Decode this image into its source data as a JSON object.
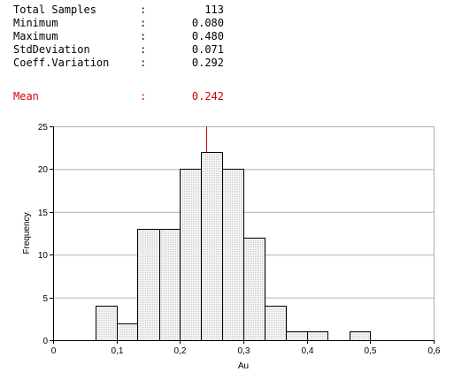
{
  "stats": [
    {
      "label": "Total Samples",
      "value": "113"
    },
    {
      "label": "Minimum",
      "value": "0.080"
    },
    {
      "label": "Maximum",
      "value": "0.480"
    },
    {
      "label": "StdDeviation",
      "value": "0.071"
    },
    {
      "label": "Coeff.Variation",
      "value": "0.292"
    }
  ],
  "mean": {
    "label": "Mean",
    "value": "0.242"
  },
  "separator": ":",
  "colors": {
    "mean": "#d40000",
    "bar_fill": "#e6e6e6",
    "bar_stroke": "#000000",
    "grid": "#b0b0b0"
  },
  "chart_data": {
    "type": "bar",
    "histogram": true,
    "bin_edges": [
      0.067,
      0.1,
      0.133,
      0.167,
      0.2,
      0.233,
      0.267,
      0.3,
      0.333,
      0.367,
      0.4,
      0.433,
      0.467,
      0.5
    ],
    "values": [
      4,
      2,
      13,
      13,
      20,
      22,
      20,
      12,
      4,
      1,
      1,
      0,
      1
    ],
    "mean_marker": 0.242,
    "xlabel": "Au",
    "ylabel": "Frequency",
    "xlim": [
      0,
      0.6
    ],
    "ylim": [
      0,
      25
    ],
    "xticks": [
      0,
      0.1,
      0.2,
      0.3,
      0.4,
      0.5,
      0.6
    ],
    "xtick_labels": [
      "0",
      "0,1",
      "0,2",
      "0,3",
      "0,4",
      "0,5",
      "0,6"
    ],
    "yticks": [
      0,
      5,
      10,
      15,
      20,
      25
    ],
    "ytick_labels": [
      "0",
      "5",
      "10",
      "15",
      "20",
      "25"
    ],
    "grid": "horizontal"
  }
}
